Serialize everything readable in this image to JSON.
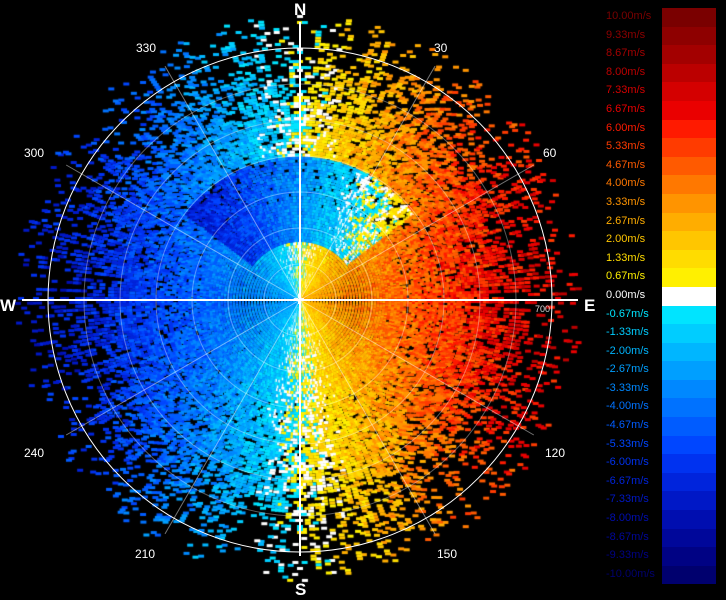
{
  "display": {
    "compass": {
      "north": "N",
      "south": "S",
      "east": "E",
      "west": "W"
    },
    "azimuth_labels": [
      "30",
      "60",
      "120",
      "150",
      "210",
      "240",
      "300",
      "330"
    ],
    "range_labels": [
      "700"
    ],
    "center_glyph": "✛"
  },
  "legend": {
    "entries": [
      {
        "label": "10.00m/s",
        "color": "#7a0000"
      },
      {
        "label": "9.33m/s",
        "color": "#8e0000"
      },
      {
        "label": "8.67m/s",
        "color": "#a30000"
      },
      {
        "label": "8.00m/s",
        "color": "#bb0000"
      },
      {
        "label": "7.33m/s",
        "color": "#d40000"
      },
      {
        "label": "6.67m/s",
        "color": "#ea0000"
      },
      {
        "label": "6.00m/s",
        "color": "#ff1a00"
      },
      {
        "label": "5.33m/s",
        "color": "#ff3b00"
      },
      {
        "label": "4.67m/s",
        "color": "#ff5a00"
      },
      {
        "label": "4.00m/s",
        "color": "#ff7800"
      },
      {
        "label": "3.33m/s",
        "color": "#ff9400"
      },
      {
        "label": "2.67m/s",
        "color": "#ffad00"
      },
      {
        "label": "2.00m/s",
        "color": "#ffc600"
      },
      {
        "label": "1.33m/s",
        "color": "#ffdc00"
      },
      {
        "label": "0.67m/s",
        "color": "#fff000"
      },
      {
        "label": "0.00m/s",
        "color": "#ffffff"
      },
      {
        "label": "-0.67m/s",
        "color": "#00e4ff"
      },
      {
        "label": "-1.33m/s",
        "color": "#00cdff"
      },
      {
        "label": "-2.00m/s",
        "color": "#00b6ff"
      },
      {
        "label": "-2.67m/s",
        "color": "#009fff"
      },
      {
        "label": "-3.33m/s",
        "color": "#0088ff"
      },
      {
        "label": "-4.00m/s",
        "color": "#0072ff"
      },
      {
        "label": "-4.67m/s",
        "color": "#005cff"
      },
      {
        "label": "-5.33m/s",
        "color": "#0046ff"
      },
      {
        "label": "-6.00m/s",
        "color": "#0032f0"
      },
      {
        "label": "-6.67m/s",
        "color": "#0024dc"
      },
      {
        "label": "-7.33m/s",
        "color": "#0018c6"
      },
      {
        "label": "-8.00m/s",
        "color": "#000eb0"
      },
      {
        "label": "-8.67m/s",
        "color": "#00079a"
      },
      {
        "label": "-9.33m/s",
        "color": "#000284"
      },
      {
        "label": "-10.00m/s",
        "color": "#00006e"
      }
    ]
  }
}
